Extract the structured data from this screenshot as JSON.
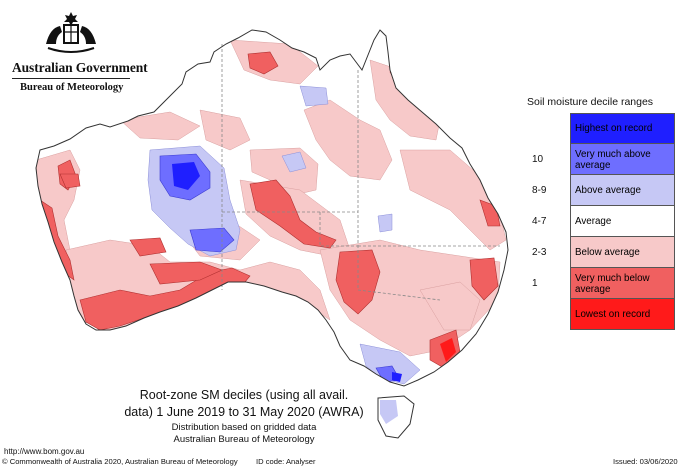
{
  "header": {
    "government": "Australian Government",
    "bureau": "Bureau of Meteorology",
    "crest_icon": "coat-of-arms-icon"
  },
  "legend": {
    "title": "Soil moisture decile ranges",
    "items": [
      {
        "range": "",
        "label": "Highest on record",
        "color": "#1f1fff"
      },
      {
        "range": "10",
        "label": "Very much above average",
        "color": "#6e6eff"
      },
      {
        "range": "8-9",
        "label": "Above average",
        "color": "#c6c8f5"
      },
      {
        "range": "4-7",
        "label": "Average",
        "color": "#ffffff"
      },
      {
        "range": "2-3",
        "label": "Below average",
        "color": "#f7c9c9"
      },
      {
        "range": "1",
        "label": "Very much below average",
        "color": "#f06060"
      },
      {
        "range": "",
        "label": "Lowest on record",
        "color": "#ff1a1a"
      }
    ]
  },
  "caption": {
    "line1": "Root-zone SM deciles (using all avail.",
    "line2": "data) 1 June 2019 to 31 May 2020 (AWRA)",
    "line3": "Distribution based on gridded data",
    "line4": "Australian Bureau of Meteorology"
  },
  "footer": {
    "url": "http://www.bom.gov.au",
    "copyright": "© Commonwealth of Australia 2020, Australian Bureau of Meteorology",
    "id_code": "ID code: Analyser",
    "issued": "Issued: 03/06/2020"
  }
}
